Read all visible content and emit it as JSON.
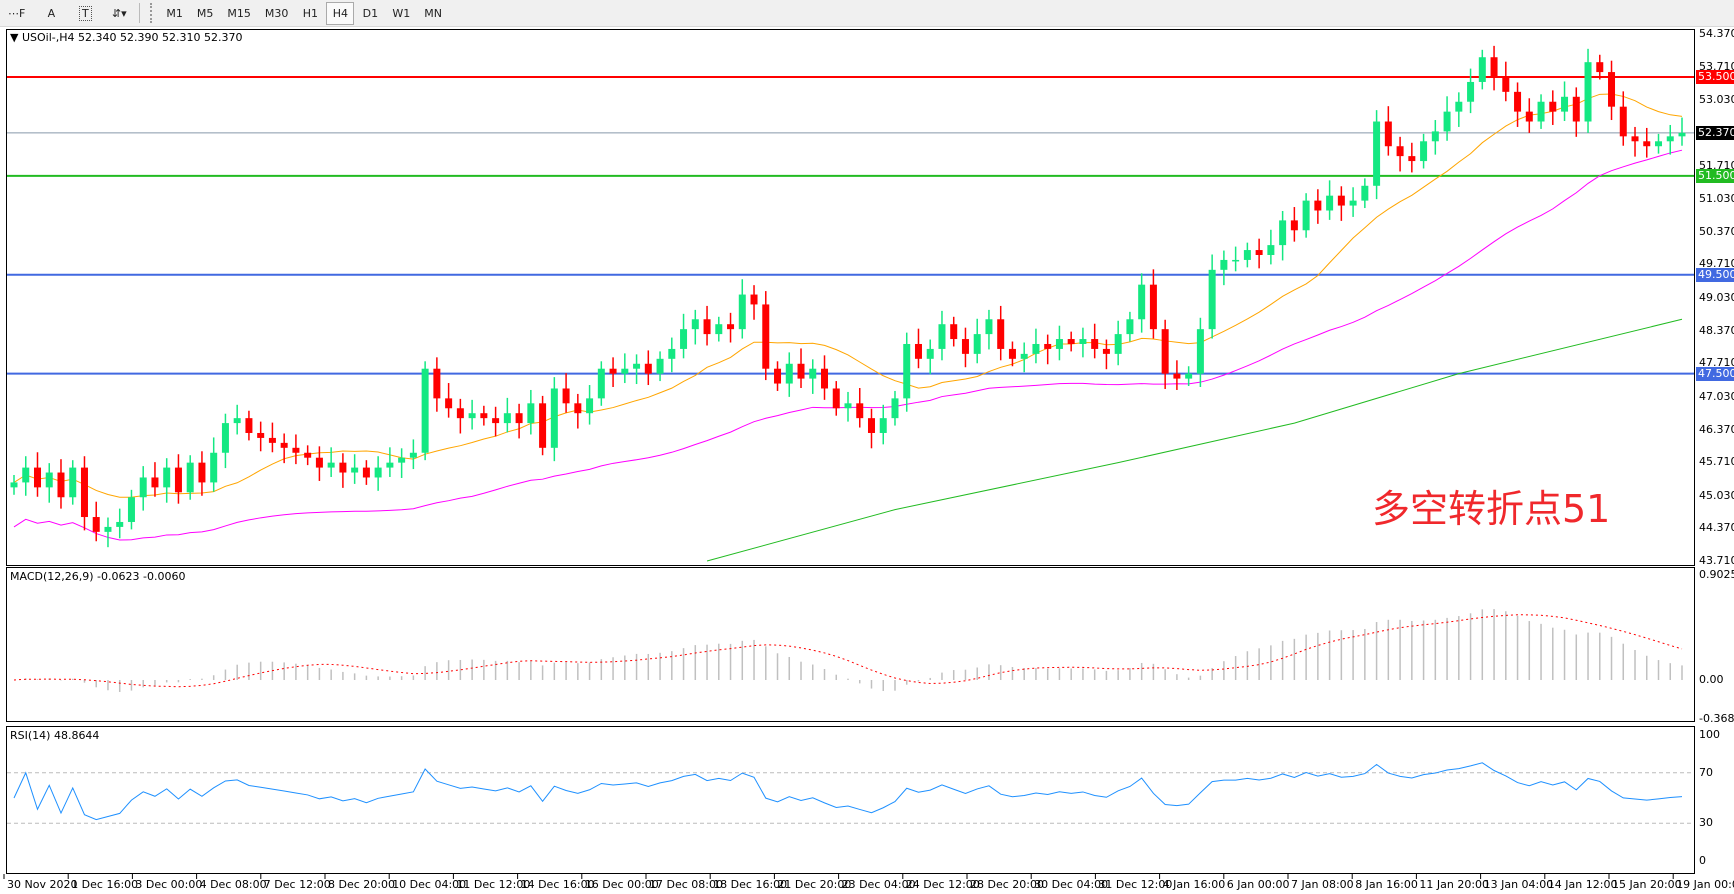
{
  "toolbar": {
    "tools": [
      {
        "name": "fibo-grid-icon",
        "glyph": "⋯F"
      },
      {
        "name": "text-tool-icon",
        "glyph": "A"
      },
      {
        "name": "text-label-icon",
        "glyph": "T"
      },
      {
        "name": "arrows-icon",
        "glyph": "⇵▾"
      }
    ],
    "timeframes": [
      "M1",
      "M5",
      "M15",
      "M30",
      "H1",
      "H4",
      "D1",
      "W1",
      "MN"
    ],
    "active_timeframe": "H4"
  },
  "chart": {
    "header": "▼ USOil-,H4  52.340 52.390 52.310 52.370",
    "annotation": "多空转折点51",
    "price_ticks": [
      "54.370",
      "53.710",
      "53.030",
      "52.370",
      "51.710",
      "51.030",
      "50.370",
      "49.710",
      "49.030",
      "48.370",
      "47.710",
      "47.030",
      "46.370",
      "45.710",
      "45.030",
      "44.370",
      "43.710"
    ],
    "current_price": "52.370",
    "levels": [
      {
        "value": 53.5,
        "label": "53.500",
        "color": "#ff0000"
      },
      {
        "value": 51.5,
        "label": "51.500",
        "color": "#22bb22"
      },
      {
        "value": 49.5,
        "label": "49.500",
        "color": "#4169e1"
      },
      {
        "value": 47.5,
        "label": "47.500",
        "color": "#4169e1"
      }
    ],
    "colors": {
      "bull": "#14e882",
      "bear": "#ff0000",
      "ma_fast": "#ffa500",
      "ma_mid": "#ff00ff",
      "ma_slow": "#22bb22",
      "current_line": "#8899aa"
    }
  },
  "chart_data": {
    "type": "candlestick",
    "closes": [
      45.3,
      45.6,
      45.2,
      45.5,
      45.0,
      45.6,
      44.6,
      44.3,
      44.4,
      44.5,
      45.0,
      45.4,
      45.2,
      45.6,
      45.1,
      45.7,
      45.3,
      45.9,
      46.5,
      46.6,
      46.3,
      46.2,
      46.1,
      46.0,
      45.9,
      45.8,
      45.6,
      45.7,
      45.5,
      45.6,
      45.4,
      45.6,
      45.7,
      45.8,
      45.9,
      47.6,
      47.0,
      46.8,
      46.6,
      46.7,
      46.6,
      46.5,
      46.7,
      46.5,
      46.9,
      46.0,
      47.2,
      46.9,
      46.7,
      47.0,
      47.6,
      47.5,
      47.6,
      47.7,
      47.5,
      47.8,
      48.0,
      48.4,
      48.6,
      48.3,
      48.5,
      48.4,
      49.1,
      48.9,
      47.6,
      47.3,
      47.7,
      47.4,
      47.6,
      47.2,
      46.8,
      46.9,
      46.6,
      46.3,
      46.6,
      47.0,
      48.1,
      47.8,
      48.0,
      48.5,
      48.2,
      47.9,
      48.3,
      48.6,
      48.0,
      47.8,
      47.9,
      48.1,
      48.0,
      48.2,
      48.1,
      48.2,
      48.0,
      47.9,
      48.3,
      48.6,
      49.3,
      48.4,
      47.5,
      47.4,
      47.5,
      48.4,
      49.6,
      49.8,
      49.8,
      50.0,
      49.9,
      50.1,
      50.6,
      50.4,
      51.0,
      50.8,
      51.1,
      50.9,
      51.0,
      51.3,
      52.6,
      52.1,
      51.9,
      51.8,
      52.2,
      52.4,
      52.8,
      53.0,
      53.4,
      53.9,
      53.5,
      53.2,
      52.8,
      52.6,
      53.0,
      52.8,
      53.1,
      52.6,
      53.8,
      53.6,
      52.9,
      52.3,
      52.2,
      52.1,
      52.2,
      52.3,
      52.37
    ],
    "ma_slow_points": [
      [
        59,
        43.71
      ],
      [
        75,
        44.75
      ],
      [
        94,
        45.7
      ],
      [
        109,
        46.5
      ],
      [
        123,
        47.5
      ],
      [
        142,
        48.6
      ]
    ],
    "ylim": [
      43.71,
      54.37
    ],
    "time_labels": [
      "30 Nov 2020",
      "1 Dec 16:00",
      "3 Dec 00:00",
      "4 Dec 08:00",
      "7 Dec 12:00",
      "8 Dec 20:00",
      "10 Dec 04:00",
      "11 Dec 12:00",
      "14 Dec 16:00",
      "16 Dec 00:00",
      "17 Dec 08:00",
      "18 Dec 16:00",
      "21 Dec 20:00",
      "23 Dec 04:00",
      "24 Dec 12:00",
      "28 Dec 20:00",
      "30 Dec 04:00",
      "31 Dec 12:00",
      "4 Jan 16:00",
      "6 Jan 00:00",
      "7 Jan 08:00",
      "8 Jan 16:00",
      "11 Jan 20:00",
      "13 Jan 04:00",
      "14 Jan 12:00",
      "15 Jan 20:00",
      "19 Jan 00:00"
    ]
  },
  "macd": {
    "title": "MACD(12,26,9) -0.0623 -0.0060",
    "ticks": [
      "0.9025",
      "0.00",
      "-0.3688"
    ],
    "range": [
      -0.3688,
      0.9025
    ]
  },
  "rsi": {
    "title": "RSI(14) 48.8644",
    "ticks": [
      "100",
      "70",
      "30",
      "0"
    ],
    "levels": [
      70,
      30
    ],
    "color": "#1e90ff"
  }
}
